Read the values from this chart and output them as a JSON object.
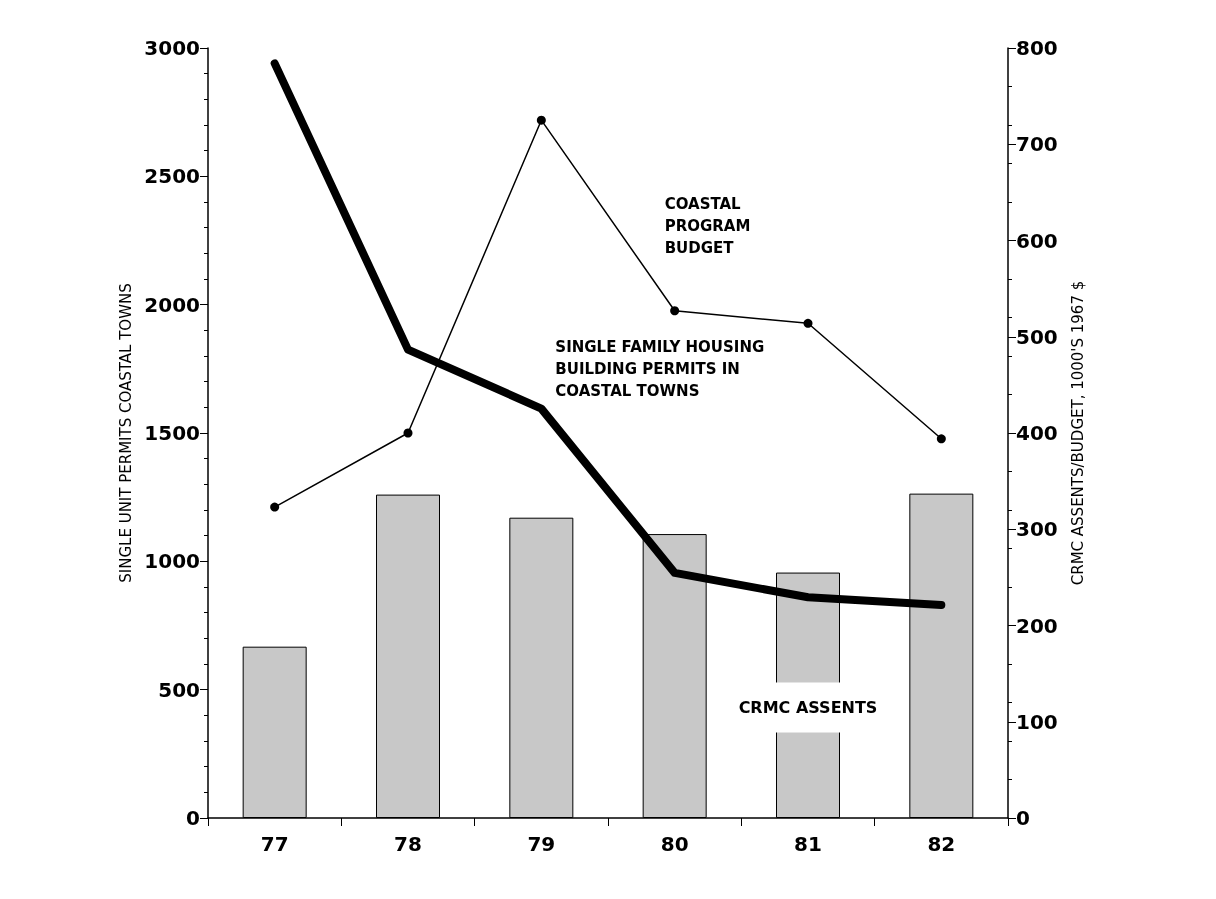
{
  "chart_data": {
    "type": "bar",
    "ylabel": "SINGLE UNIT PERMITS COASTAL TOWNS",
    "y2label": "CRMC ASSENTS/BUDGET, 1000'S 1967 $",
    "categories": [
      "77",
      "78",
      "79",
      "80",
      "81",
      "82"
    ],
    "series": [
      {
        "name": "CRMC ASSENTS",
        "axis": "y2",
        "color": "#c8c8c8",
        "values": [
          178,
          336,
          312,
          295,
          255,
          337
        ]
      },
      {
        "name": "COASTAL PROGRAM BUDGET",
        "type": "line",
        "axis": "y2",
        "color": "#000000",
        "marker": "circle",
        "values": [
          323,
          400,
          725,
          527,
          514,
          394
        ]
      },
      {
        "name": "SINGLE FAMILY HOUSING BUILDING PERMITS IN COASTAL TOWNS",
        "type": "line",
        "color": "#000000",
        "marker": "none",
        "values": [
          2940,
          1825,
          1595,
          955,
          860,
          830
        ]
      }
    ],
    "ylim": [
      0,
      3000
    ],
    "yticks": [
      0,
      500,
      1000,
      1500,
      2000,
      2500,
      3000
    ],
    "y2lim": [
      0,
      800
    ],
    "y2ticks": [
      0,
      100,
      200,
      300,
      400,
      500,
      600,
      700,
      800
    ],
    "grid": false,
    "legend": false
  }
}
